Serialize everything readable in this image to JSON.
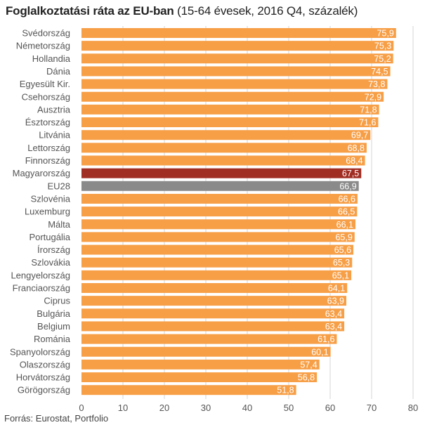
{
  "title": {
    "main": "Foglalkoztatási ráta az EU-ban",
    "sub": " (15-64 évesek, 2016 Q4, százalék)"
  },
  "source": "Forrás: Eurostat, Portfolio",
  "colors": {
    "default": "#f79f47",
    "highlight": "#a12e23",
    "average": "#8a8a8a",
    "grid": "#d4d4d4",
    "label": "#555555"
  },
  "chart_data": {
    "type": "bar",
    "orientation": "horizontal",
    "title": "Foglalkoztatási ráta az EU-ban (15-64 évesek, 2016 Q4, százalék)",
    "categories": [
      "Svédország",
      "Németország",
      "Hollandia",
      "Dánia",
      "Egyesült Kir.",
      "Csehország",
      "Ausztria",
      "Észtország",
      "Litvánia",
      "Lettország",
      "Finnország",
      "Magyarország",
      "EU28",
      "Szlovénia",
      "Luxemburg",
      "Málta",
      "Portugália",
      "Írország",
      "Szlovákia",
      "Lengyelország",
      "Franciaország",
      "Ciprus",
      "Bulgária",
      "Belgium",
      "Románia",
      "Spanyolország",
      "Olaszország",
      "Horvátország",
      "Görögország"
    ],
    "values": [
      75.9,
      75.3,
      75.2,
      74.5,
      73.8,
      72.9,
      71.8,
      71.6,
      69.7,
      68.8,
      68.4,
      67.5,
      66.9,
      66.6,
      66.5,
      66.1,
      65.9,
      65.6,
      65.3,
      65.1,
      64.1,
      63.9,
      63.4,
      63.4,
      61.6,
      60.1,
      57.4,
      56.8,
      51.8
    ],
    "value_labels": [
      "75,9",
      "75,3",
      "75,2",
      "74,5",
      "73,8",
      "72,9",
      "71,8",
      "71,6",
      "69,7",
      "68,8",
      "68,4",
      "67,5",
      "66,9",
      "66,6",
      "66,5",
      "66,1",
      "65,9",
      "65,6",
      "65,3",
      "65,1",
      "64,1",
      "63,9",
      "63,4",
      "63,4",
      "61,6",
      "60,1",
      "57,4",
      "56,8",
      "51,8"
    ],
    "highlight": {
      "Magyarország": "highlight",
      "EU28": "average"
    },
    "xlim": [
      0,
      80
    ],
    "xticks": [
      0,
      10,
      20,
      30,
      40,
      50,
      60,
      70,
      80
    ],
    "xtick_labels": [
      "0",
      "10",
      "20",
      "30",
      "40",
      "50",
      "60",
      "70",
      "80"
    ],
    "xlabel": "",
    "ylabel": "",
    "grid": true
  }
}
